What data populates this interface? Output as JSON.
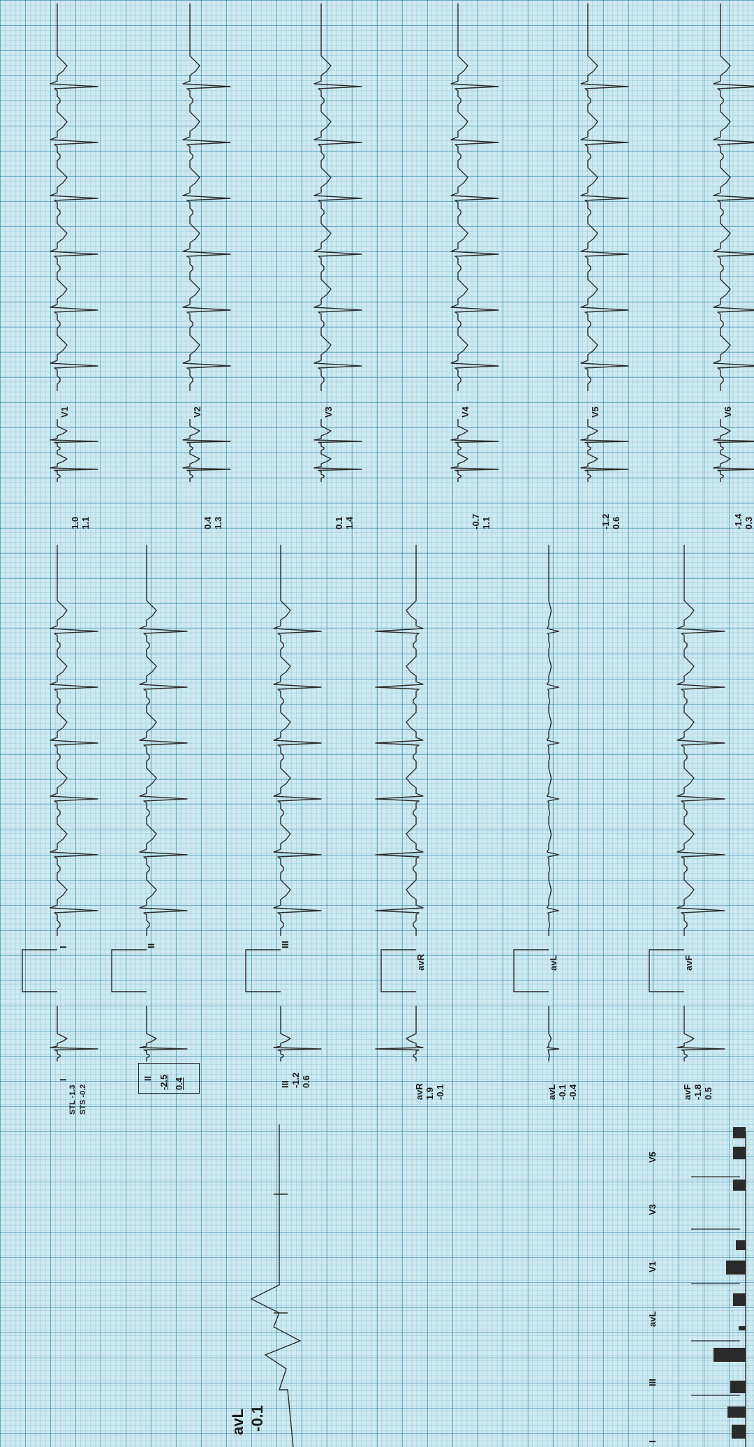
{
  "strip_top": [
    {
      "lead": "V1",
      "v1": "1.0",
      "v2": "1.1"
    },
    {
      "lead": "V2",
      "v1": "0.4",
      "v2": "1.3"
    },
    {
      "lead": "V3",
      "v1": "0.1",
      "v2": "1.4"
    },
    {
      "lead": "V4",
      "v1": "-0.7",
      "v2": "1.1"
    },
    {
      "lead": "V5",
      "v1": "-1.2",
      "v2": "0.6"
    },
    {
      "lead": "V6",
      "v1": "-1.4",
      "v2": "0.3"
    }
  ],
  "strip_bottom": [
    {
      "lead": "I",
      "v1": "STL -1.3",
      "v2": "STS -0.2"
    },
    {
      "lead": "II",
      "v1": "-2.5",
      "v2": "0.4"
    },
    {
      "lead": "III",
      "v1": "-1.2",
      "v2": "0.6"
    },
    {
      "lead": "avR",
      "v1": "1.9",
      "v2": "-0.1"
    },
    {
      "lead": "avL",
      "v1": "-0.1",
      "v2": "-0.4"
    },
    {
      "lead": "avF",
      "v1": "-1.8",
      "v2": "0.5"
    }
  ],
  "detail": {
    "lead": "avL",
    "value": "-0.1"
  },
  "bar_labels": [
    "I",
    "III",
    "avL",
    "V1",
    "V3",
    "V5"
  ],
  "colors": {
    "trace": "#2a2a2a",
    "grid_major": "#2882a5",
    "grid_minor": "#3c96b9",
    "paper": "#cfe9f1"
  }
}
